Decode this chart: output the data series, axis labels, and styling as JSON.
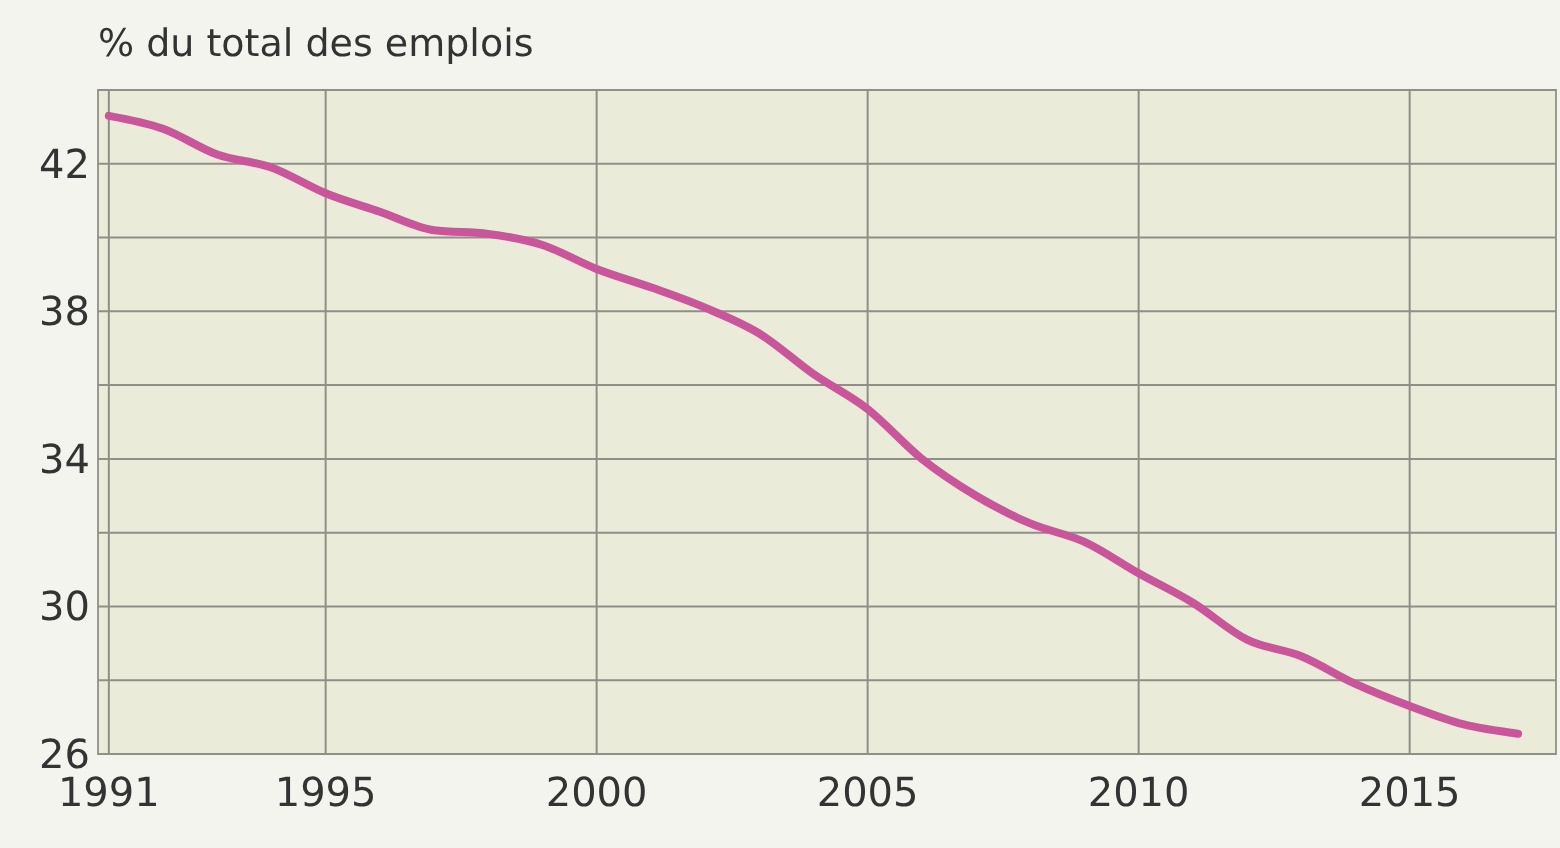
{
  "chart_data": {
    "type": "line",
    "ylabel": "% du total des emplois",
    "x": [
      1991,
      1992,
      1993,
      1994,
      1995,
      1996,
      1997,
      1998,
      1999,
      2000,
      2001,
      2002,
      2003,
      2004,
      2005,
      2006,
      2007,
      2008,
      2009,
      2010,
      2011,
      2012,
      2013,
      2014,
      2015,
      2016,
      2017
    ],
    "series": [
      {
        "color": "#c9559a",
        "values": [
          43.3,
          42.95,
          42.25,
          41.9,
          41.2,
          40.7,
          40.2,
          40.1,
          39.8,
          39.15,
          38.65,
          38.1,
          37.4,
          36.3,
          35.35,
          34.0,
          33.0,
          32.25,
          31.75,
          30.9,
          30.1,
          29.1,
          28.65,
          27.9,
          27.3,
          26.8,
          26.55
        ]
      }
    ],
    "xlim": [
      1990.8,
      2017.7
    ],
    "xticks": [
      1991,
      1995,
      2000,
      2005,
      2010,
      2015
    ],
    "ylim": [
      26,
      44
    ],
    "yticks": [
      26,
      {
        "value": 28,
        "label": null
      },
      30,
      {
        "value": 32,
        "label": null
      },
      34,
      {
        "value": 36,
        "label": null
      },
      38,
      {
        "value": 40,
        "label": null
      },
      42,
      {
        "value": 44,
        "label": null
      }
    ],
    "grid": true,
    "line_style": "solid",
    "marker": "none"
  }
}
